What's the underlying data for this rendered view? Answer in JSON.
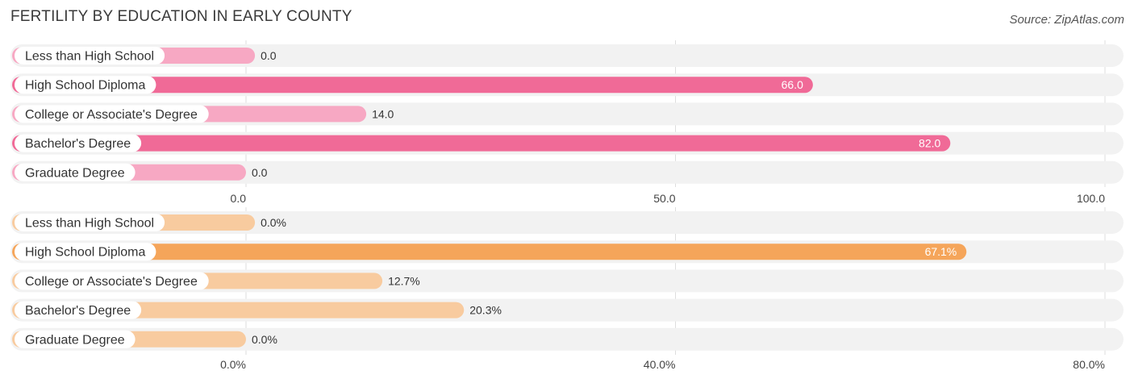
{
  "title": "FERTILITY BY EDUCATION IN EARLY COUNTY",
  "source": "Source: ZipAtlas.com",
  "chart_data": [
    {
      "type": "bar",
      "orientation": "horizontal",
      "categories": [
        "Less than High School",
        "High School Diploma",
        "College or Associate's Degree",
        "Bachelor's Degree",
        "Graduate Degree"
      ],
      "values": [
        0.0,
        66.0,
        14.0,
        82.0,
        0.0
      ],
      "value_labels": [
        "0.0",
        "66.0",
        "14.0",
        "82.0",
        "0.0"
      ],
      "xlim": [
        0,
        100
      ],
      "ticks": [
        0,
        50,
        100
      ],
      "tick_labels": [
        "0.0",
        "50.0",
        "100.0"
      ],
      "colors": {
        "strong": "#f06a97",
        "light": "#f7a8c3"
      }
    },
    {
      "type": "bar",
      "orientation": "horizontal",
      "categories": [
        "Less than High School",
        "High School Diploma",
        "College or Associate's Degree",
        "Bachelor's Degree",
        "Graduate Degree"
      ],
      "values": [
        0.0,
        67.1,
        12.7,
        20.3,
        0.0
      ],
      "value_labels": [
        "0.0%",
        "67.1%",
        "12.7%",
        "20.3%",
        "0.0%"
      ],
      "xlim": [
        0,
        80
      ],
      "ticks": [
        0,
        40,
        80
      ],
      "tick_labels": [
        "0.0%",
        "40.0%",
        "80.0%"
      ],
      "colors": {
        "strong": "#f5a55a",
        "light": "#f8cb9f"
      }
    }
  ],
  "colors": {
    "track": "#f2f2f2",
    "grid": "#dddddd",
    "label_text": "#333333"
  }
}
